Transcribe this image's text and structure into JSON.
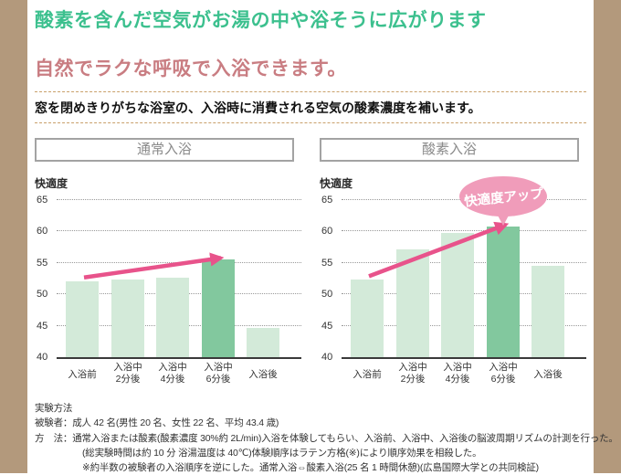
{
  "page": {
    "title": "酸素を含んだ空気がお湯の中や浴そうに広がります",
    "subtitle": "自然でラクな呼吸で入浴できます。",
    "note": "窓を閉めきりがちな浴室の、入浴時に消費される空気の酸素濃度を補います。"
  },
  "colors": {
    "accent_green": "#3cc08e",
    "accent_pink": "#c97d82",
    "side_border_tan": "#b3997c",
    "dashed_rule_tan": "#c9a06a",
    "bar_light_green": "#d3ead9",
    "bar_dark_green": "#82c89e",
    "arrow_pink": "#e8538b",
    "balloon_pink": "#f09cba"
  },
  "chart_data": [
    {
      "type": "bar",
      "title": "通常入浴",
      "ylabel": "快適度",
      "ylim": [
        40,
        65
      ],
      "yticks": [
        65,
        60,
        55,
        50,
        45,
        40
      ],
      "grid": true,
      "categories": [
        "入浴前",
        "入浴中\n2分後",
        "入浴中\n4分後",
        "入浴中\n6分後",
        "入浴後"
      ],
      "values": [
        52.1,
        52.4,
        52.6,
        55.5,
        44.6
      ],
      "highlight_index": 3,
      "arrow": {
        "from_index": 0,
        "to_index": 3
      }
    },
    {
      "type": "bar",
      "title": "酸素入浴",
      "ylabel": "快適度",
      "ylim": [
        40,
        65
      ],
      "yticks": [
        65,
        60,
        55,
        50,
        45,
        40
      ],
      "grid": true,
      "categories": [
        "入浴前",
        "入浴中\n2分後",
        "入浴中\n4分後",
        "入浴中\n6分後",
        "入浴後"
      ],
      "values": [
        52.3,
        57.1,
        59.7,
        60.8,
        54.5
      ],
      "highlight_index": 3,
      "arrow": {
        "from_index": 0,
        "to_index": 3
      },
      "balloon": "快適度アップ"
    }
  ],
  "footer": {
    "heading": "実験方法",
    "lines": [
      "被験者：成人 42 名(男性 20 名、女性 22 名、平均 43.4 歳)",
      "方　法：通常入浴または酸素(酸素濃度 30%約 2L/min)入浴を体験してもらい、入浴前、入浴中、入浴後の脳波周期リズムの計測を行った。",
      "(総実験時間は約 10 分 浴湯温度は 40℃)体験順序はラテン方格(※)により順序効果を相殺した。",
      "※約半数の被験者の入浴順序を逆にした。通常入浴⇔酸素入浴(25 名 1 時間休憩)(広島国際大学との共同検証)"
    ]
  }
}
